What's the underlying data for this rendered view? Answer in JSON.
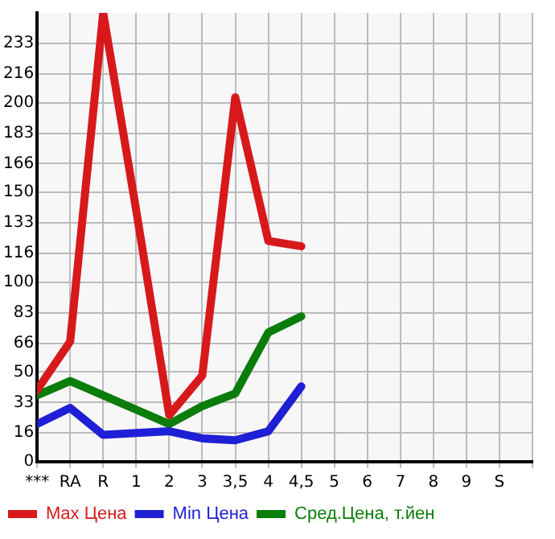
{
  "chart_data": {
    "type": "line",
    "categories": [
      "***",
      "RA",
      "R",
      "1",
      "2",
      "3",
      "3,5",
      "4",
      "4,5",
      "5",
      "6",
      "7",
      "8",
      "9",
      "S"
    ],
    "ylim": [
      0,
      250
    ],
    "yticks": [
      0,
      16,
      33,
      50,
      66,
      83,
      100,
      116,
      133,
      150,
      166,
      183,
      200,
      216,
      233
    ],
    "series": [
      {
        "name": "Max Цена",
        "color": "#d7191c",
        "values": [
          40,
          67,
          250,
          140,
          26,
          48,
          203,
          123,
          120,
          null,
          null,
          null,
          null,
          null,
          null
        ]
      },
      {
        "name": "Min Цена",
        "color": "#1f1fd6",
        "values": [
          21,
          30,
          15,
          16,
          17,
          13,
          12,
          17,
          42,
          null,
          null,
          null,
          null,
          null,
          null
        ]
      },
      {
        "name": "Сред.Цена, т.йен",
        "color": "#0a7d0a",
        "values": [
          37,
          45,
          37,
          29,
          21,
          31,
          38,
          72,
          81,
          null,
          null,
          null,
          null,
          null,
          null
        ]
      }
    ],
    "grid": true,
    "legend": "bottom",
    "marker": "none",
    "line_style": "solid"
  }
}
